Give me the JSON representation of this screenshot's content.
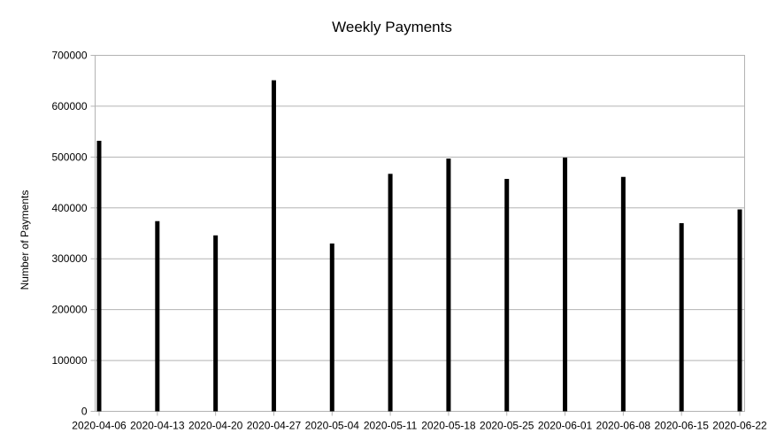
{
  "chart_data": {
    "type": "bar",
    "title": "Weekly Payments",
    "xlabel": "",
    "ylabel": "Number of Payments",
    "ylim": [
      0,
      700000
    ],
    "yticks": [
      "0",
      "100000",
      "200000",
      "300000",
      "400000",
      "500000",
      "600000",
      "700000"
    ],
    "grid": true,
    "legend": "none",
    "bar_color": "#000000",
    "categories": [
      "2020-04-06",
      "2020-04-13",
      "2020-04-20",
      "2020-04-27",
      "2020-05-04",
      "2020-05-11",
      "2020-05-18",
      "2020-05-25",
      "2020-06-01",
      "2020-06-08",
      "2020-06-15",
      "2020-06-22"
    ],
    "values": [
      532000,
      374000,
      346000,
      651000,
      330000,
      467000,
      497000,
      457000,
      499000,
      461000,
      370000,
      397000
    ]
  }
}
